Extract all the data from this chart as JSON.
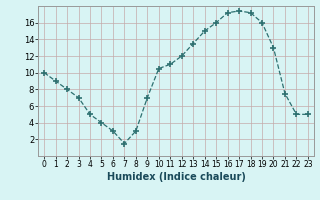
{
  "x": [
    0,
    1,
    2,
    3,
    4,
    5,
    6,
    7,
    8,
    9,
    10,
    11,
    12,
    13,
    14,
    15,
    16,
    17,
    18,
    19,
    20,
    21,
    22,
    23
  ],
  "y": [
    10,
    9,
    8,
    7,
    5,
    4,
    3,
    1.5,
    3,
    7,
    10.5,
    11,
    12,
    13.5,
    15,
    16,
    17.2,
    17.4,
    17.2,
    16,
    13,
    7.5,
    5,
    5
  ],
  "line_color": "#2d7070",
  "marker": "+",
  "marker_size": 4,
  "marker_lw": 1.2,
  "bg_color": "#d8f4f4",
  "grid_color": "#c4aaaa",
  "xlabel": "Humidex (Indice chaleur)",
  "xlim": [
    -0.5,
    23.5
  ],
  "ylim": [
    0,
    18
  ],
  "yticks": [
    2,
    4,
    6,
    8,
    10,
    12,
    14,
    16
  ],
  "xticks": [
    0,
    1,
    2,
    3,
    4,
    5,
    6,
    7,
    8,
    9,
    10,
    11,
    12,
    13,
    14,
    15,
    16,
    17,
    18,
    19,
    20,
    21,
    22,
    23
  ]
}
